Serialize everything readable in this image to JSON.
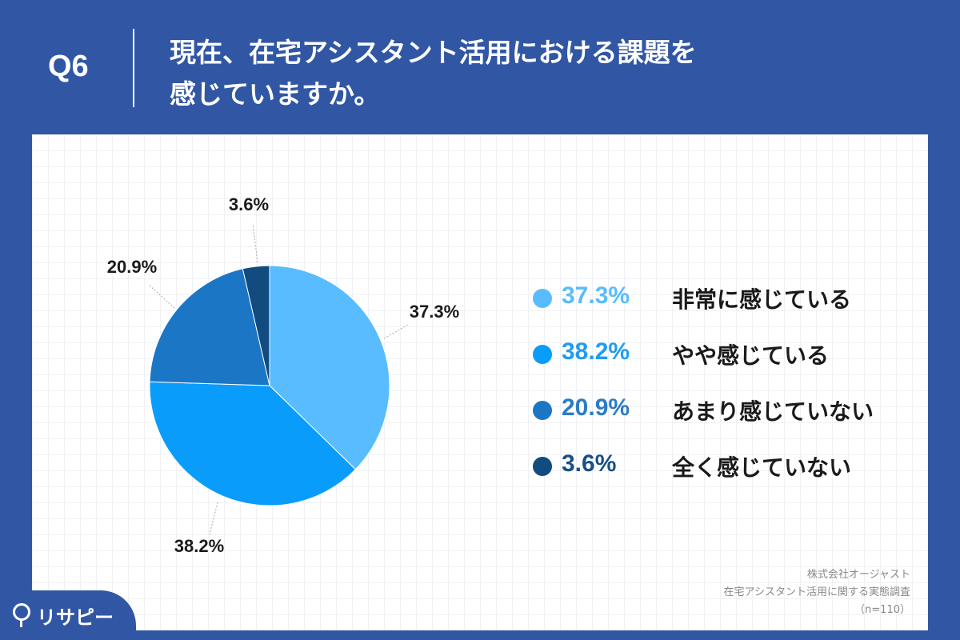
{
  "header": {
    "qnum": "Q6",
    "question_line1": "現在、在宅アシスタント活用における課題を",
    "question_line2": "感じていますか。"
  },
  "colors": {
    "background": "#3157a4",
    "slice_1": "#58bcff",
    "slice_2": "#0a9cfb",
    "slice_3": "#1b76c6",
    "slice_4": "#114b80",
    "legend_pct_1": "#58bcff",
    "legend_pct_2": "#1f9cf0",
    "legend_pct_3": "#2a7cc7",
    "legend_pct_4": "#1a4f86"
  },
  "chart_data": {
    "type": "pie",
    "unit": "%",
    "slices": [
      {
        "label": "非常に感じている",
        "value": 37.3,
        "display": "37.3%",
        "color": "#58bcff"
      },
      {
        "label": "やや感じている",
        "value": 38.2,
        "display": "38.2%",
        "color": "#0a9cfb"
      },
      {
        "label": "あまり感じていない",
        "value": 20.9,
        "display": "20.9%",
        "color": "#1b76c6"
      },
      {
        "label": "全く感じていない",
        "value": 3.6,
        "display": "3.6%",
        "color": "#114b80"
      }
    ],
    "start": "12 o'clock",
    "direction": "clockwise",
    "legend_placement": "right"
  },
  "legend": [
    {
      "pct": "37.3%",
      "label": "非常に感じている"
    },
    {
      "pct": "38.2%",
      "label": "やや感じている"
    },
    {
      "pct": "20.9%",
      "label": "あまり感じていない"
    },
    {
      "pct": "3.6%",
      "label": "全く感じていない"
    }
  ],
  "source": {
    "line1": "株式会社オージャスト",
    "line2": "在宅アシスタント活用に関する実態調査",
    "line3": "（n=110）"
  },
  "logo": {
    "text": "リサピー",
    "icon": "location-pin-icon"
  }
}
